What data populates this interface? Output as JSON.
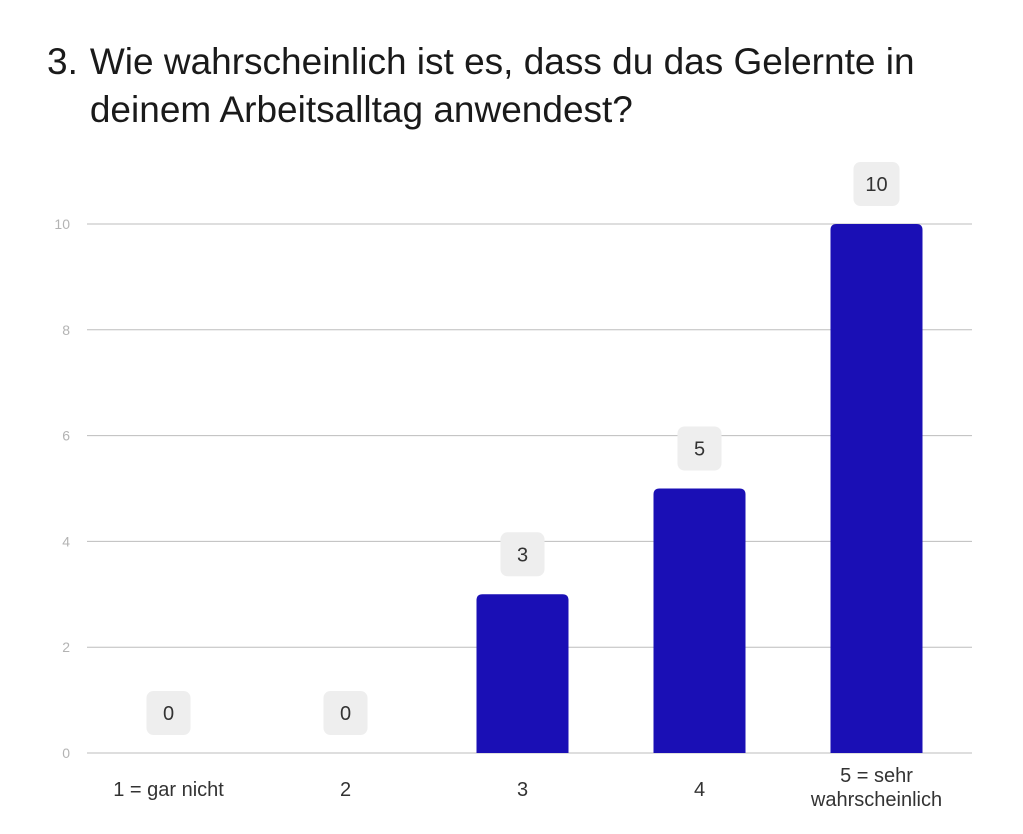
{
  "question": {
    "number": "3.",
    "text": "Wie wahrscheinlich ist es, dass du das Gelernte in deinem Arbeitsalltag anwendest?"
  },
  "chart_data": {
    "type": "bar",
    "title": "3. Wie wahrscheinlich ist es, dass du das Gelernte in deinem Arbeitsalltag anwendest?",
    "categories": [
      [
        "1 = gar nicht"
      ],
      [
        "2"
      ],
      [
        "3"
      ],
      [
        "4"
      ],
      [
        "5 = sehr",
        "wahrscheinlich"
      ]
    ],
    "values": [
      0,
      0,
      3,
      5,
      10
    ],
    "ylim": [
      0,
      10
    ],
    "yticks": [
      0,
      2,
      4,
      6,
      8,
      10
    ],
    "xlabel": "",
    "ylabel": "",
    "grid": true,
    "colors": {
      "bar": "#1a0fb5",
      "grid": "#bdbdbd",
      "label_bg": "#eeeeee"
    }
  }
}
